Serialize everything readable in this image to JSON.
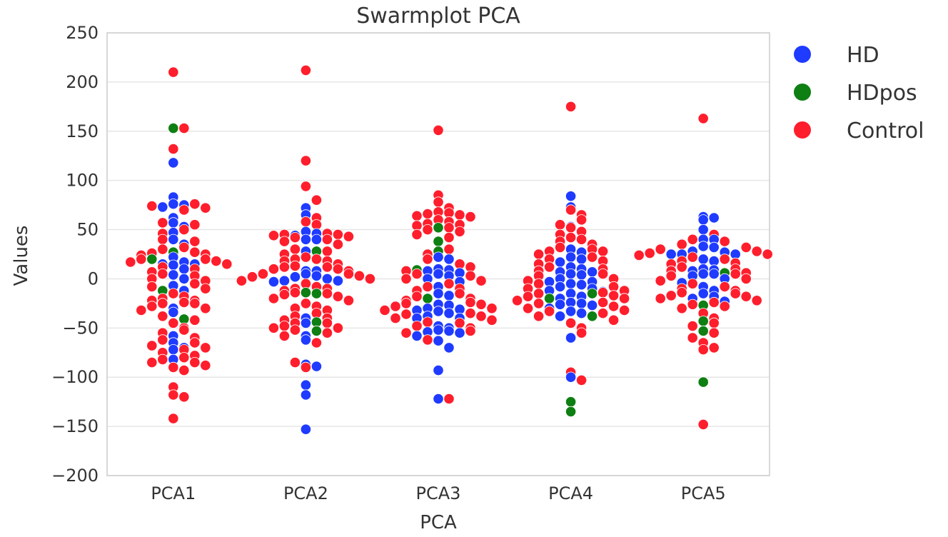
{
  "chart_data": {
    "type": "scatter",
    "subtype": "swarm",
    "title": "Swarmplot PCA",
    "xlabel": "PCA",
    "ylabel": "Values",
    "ylim": [
      -200,
      250
    ],
    "yticks": [
      "250",
      "200",
      "150",
      "100",
      "50",
      "0",
      "−50",
      "−100",
      "−150",
      "−200"
    ],
    "categories": [
      "PCA1",
      "PCA2",
      "PCA3",
      "PCA4",
      "PCA5"
    ],
    "grid": true,
    "legend": "right, outside plot",
    "series": [
      {
        "name": "HD",
        "color": "#1f3bff",
        "values": [
          [
            22,
            118,
            83,
            76,
            75,
            73,
            62,
            57,
            53,
            47,
            40,
            35,
            17,
            15,
            15,
            14,
            10,
            4,
            0,
            -7,
            -12,
            -30,
            -34,
            -58,
            -65,
            -70,
            -72,
            -82
          ],
          [
            72,
            65,
            48,
            46,
            44,
            40,
            40,
            28,
            8,
            8,
            5,
            3,
            2,
            0,
            -2,
            -2,
            -3,
            -40,
            -45,
            -58,
            -62,
            -87,
            -89,
            -108,
            -118,
            -153
          ],
          [
            22,
            20,
            10,
            9,
            8,
            6,
            5,
            3,
            0,
            -3,
            -8,
            -15,
            -17,
            -26,
            -27,
            -30,
            -31,
            -32,
            -33,
            -35,
            -38,
            -40,
            -40,
            -48,
            -50,
            -52,
            -53,
            -54,
            -55,
            -58,
            -63,
            -70,
            -93,
            -122
          ],
          [
            84,
            73,
            53,
            30,
            27,
            22,
            20,
            17,
            12,
            10,
            7,
            7,
            5,
            4,
            0,
            -3,
            -3,
            -5,
            -6,
            -8,
            -10,
            -12,
            -13,
            -15,
            -18,
            -20,
            -24,
            -25,
            -26,
            -27,
            -30,
            -33,
            -35,
            -38,
            -60,
            -100
          ],
          [
            63,
            62,
            60,
            50,
            40,
            40,
            33,
            32,
            28,
            27,
            25,
            25,
            25,
            20,
            18,
            10,
            9,
            8,
            5,
            5,
            3,
            0,
            -4,
            -8,
            -12,
            -15,
            -18,
            -20,
            -23
          ]
        ]
      },
      {
        "name": "HDpos",
        "color": "#0e7f12",
        "values": [
          [
            153,
            27,
            20,
            -12,
            -41
          ],
          [
            28,
            -14,
            -15,
            -44,
            -53
          ],
          [
            52,
            38,
            28,
            9,
            -20
          ],
          [
            -15,
            -20,
            -38,
            -125,
            -135
          ],
          [
            6,
            -27,
            -43,
            -53,
            -105
          ]
        ]
      },
      {
        "name": "Control",
        "color": "#ff1e2c",
        "values": [
          [
            210,
            153,
            132,
            76,
            74,
            72,
            70,
            57,
            55,
            50,
            46,
            40,
            38,
            32,
            30,
            27,
            26,
            25,
            24,
            20,
            20,
            18,
            17,
            15,
            12,
            10,
            7,
            5,
            3,
            0,
            -2,
            -5,
            -8,
            -10,
            -15,
            -18,
            -20,
            -22,
            -22,
            -24,
            -25,
            -25,
            -28,
            -30,
            -32,
            -38,
            -42,
            -45,
            -50,
            -52,
            -55,
            -60,
            -62,
            -65,
            -68,
            -70,
            -72,
            -75,
            -78,
            -80,
            -82,
            -85,
            -85,
            -88,
            -90,
            -93,
            -110,
            -118,
            -120,
            -142
          ],
          [
            212,
            120,
            94,
            80,
            62,
            58,
            55,
            46,
            45,
            45,
            44,
            43,
            42,
            40,
            38,
            35,
            30,
            28,
            25,
            22,
            20,
            20,
            18,
            18,
            15,
            13,
            12,
            12,
            10,
            10,
            8,
            5,
            5,
            3,
            2,
            0,
            -2,
            -5,
            -8,
            -10,
            -10,
            -12,
            -14,
            -15,
            -16,
            -18,
            -20,
            -22,
            -25,
            -28,
            -30,
            -32,
            -35,
            -38,
            -40,
            -42,
            -45,
            -45,
            -48,
            -50,
            -50,
            -52,
            -55,
            -58,
            -65,
            -85,
            -90
          ],
          [
            151,
            85,
            78,
            72,
            68,
            67,
            66,
            65,
            64,
            63,
            60,
            58,
            56,
            55,
            54,
            52,
            50,
            48,
            45,
            42,
            30,
            25,
            20,
            15,
            12,
            8,
            5,
            3,
            0,
            -2,
            -5,
            -8,
            -10,
            -12,
            -15,
            -18,
            -20,
            -22,
            -24,
            -25,
            -26,
            -28,
            -30,
            -32,
            -35,
            -36,
            -38,
            -40,
            -42,
            -44,
            -45,
            -48,
            -50,
            -53,
            -55,
            -62,
            -122
          ],
          [
            175,
            70,
            65,
            60,
            55,
            52,
            48,
            45,
            42,
            40,
            38,
            35,
            32,
            30,
            28,
            28,
            25,
            22,
            20,
            18,
            15,
            12,
            10,
            8,
            5,
            3,
            0,
            -2,
            -5,
            -8,
            -10,
            -12,
            -14,
            -15,
            -17,
            -18,
            -20,
            -22,
            -24,
            -25,
            -28,
            -30,
            -32,
            -33,
            -35,
            -38,
            -42,
            -45,
            -50,
            -55,
            -95,
            -103
          ],
          [
            163,
            45,
            40,
            38,
            35,
            32,
            30,
            28,
            26,
            25,
            24,
            22,
            20,
            18,
            16,
            15,
            12,
            10,
            8,
            6,
            5,
            3,
            0,
            -2,
            -5,
            -8,
            -10,
            -12,
            -14,
            -15,
            -17,
            -18,
            -20,
            -22,
            -24,
            -26,
            -28,
            -30,
            -35,
            -40,
            -45,
            -48,
            -55,
            -60,
            -65,
            -70,
            -72,
            -148
          ]
        ]
      }
    ]
  }
}
